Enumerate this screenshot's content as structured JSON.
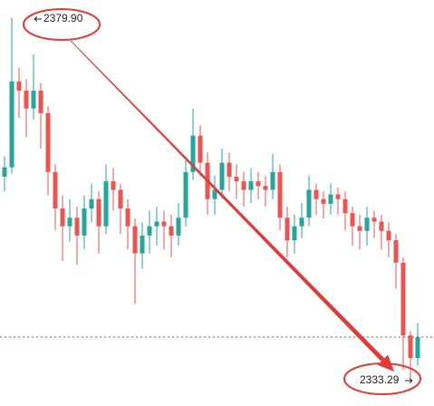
{
  "chart_data": {
    "type": "candlestick",
    "up_color": "#26a69a",
    "down_color": "#ef5350",
    "ylim": [
      2329.8,
      2382.2
    ],
    "open": [
      2359.4,
      2360.6,
      2371.7,
      2370.5,
      2368.2,
      2370.5,
      2367.6,
      2360.0,
      2355.3,
      2353.0,
      2354.1,
      2351.8,
      2355.3,
      2356.5,
      2353.0,
      2358.8,
      2357.7,
      2355.3,
      2353.0,
      2349.5,
      2351.8,
      2353.0,
      2353.6,
      2353.0,
      2351.8,
      2354.1,
      2360.0,
      2364.7,
      2361.2,
      2356.5,
      2357.7,
      2361.2,
      2359.4,
      2358.8,
      2357.7,
      2358.8,
      2358.2,
      2357.7,
      2360.0,
      2354.1,
      2351.2,
      2353.0,
      2354.1,
      2357.7,
      2356.5,
      2355.9,
      2357.1,
      2356.5,
      2354.7,
      2353.0,
      2352.4,
      2354.1,
      2353.6,
      2352.4,
      2351.2,
      2348.3,
      2338.9,
      2336.0
    ],
    "high": [
      2362.0,
      2379.9,
      2373.5,
      2372.0,
      2375.2,
      2371.5,
      2368.5,
      2361.0,
      2357.0,
      2356.5,
      2355.5,
      2357.0,
      2358.5,
      2357.5,
      2361.0,
      2360.5,
      2358.5,
      2356.5,
      2354.0,
      2353.5,
      2355.0,
      2355.5,
      2355.0,
      2354.5,
      2356.0,
      2361.5,
      2368.2,
      2366.0,
      2362.5,
      2359.5,
      2363.0,
      2362.5,
      2361.0,
      2360.0,
      2360.5,
      2360.0,
      2359.5,
      2362.3,
      2361.0,
      2355.5,
      2354.5,
      2356.0,
      2359.5,
      2358.5,
      2357.5,
      2358.5,
      2358.0,
      2357.5,
      2355.5,
      2354.5,
      2355.5,
      2355.0,
      2354.5,
      2353.5,
      2352.0,
      2349.0,
      2339.5,
      2340.5
    ],
    "low": [
      2357.5,
      2359.8,
      2367.0,
      2364.5,
      2366.8,
      2363.0,
      2357.0,
      2352.5,
      2348.5,
      2351.0,
      2348.0,
      2350.0,
      2353.5,
      2349.5,
      2352.0,
      2355.0,
      2352.0,
      2350.0,
      2343.0,
      2347.5,
      2349.5,
      2350.5,
      2350.0,
      2349.0,
      2350.5,
      2353.0,
      2359.0,
      2359.5,
      2354.5,
      2354.5,
      2356.5,
      2357.5,
      2356.5,
      2355.5,
      2356.0,
      2356.5,
      2355.5,
      2356.5,
      2352.5,
      2349.0,
      2349.5,
      2351.5,
      2353.0,
      2354.5,
      2354.0,
      2354.5,
      2354.5,
      2352.5,
      2350.5,
      2350.0,
      2350.5,
      2351.5,
      2350.0,
      2349.0,
      2345.0,
      2334.5,
      2333.29,
      2335.0
    ],
    "close": [
      2360.6,
      2371.7,
      2370.5,
      2368.2,
      2370.5,
      2367.6,
      2360.0,
      2355.3,
      2353.0,
      2354.1,
      2351.8,
      2355.3,
      2356.5,
      2353.0,
      2358.8,
      2357.7,
      2355.3,
      2353.0,
      2349.5,
      2351.8,
      2353.0,
      2353.6,
      2353.0,
      2351.8,
      2354.1,
      2360.0,
      2364.7,
      2361.2,
      2356.5,
      2357.7,
      2361.2,
      2359.4,
      2358.8,
      2357.7,
      2358.8,
      2358.2,
      2357.7,
      2360.0,
      2354.1,
      2351.2,
      2353.0,
      2354.1,
      2357.7,
      2356.5,
      2355.9,
      2357.1,
      2356.5,
      2354.7,
      2353.0,
      2352.4,
      2354.1,
      2353.6,
      2352.4,
      2351.2,
      2348.3,
      2338.9,
      2336.0,
      2338.7
    ],
    "current_price": 2338.7,
    "current_price_color": "#e53935",
    "high_label": "2379.90",
    "low_label": "2333.29",
    "annotation_color": "#e53935"
  }
}
